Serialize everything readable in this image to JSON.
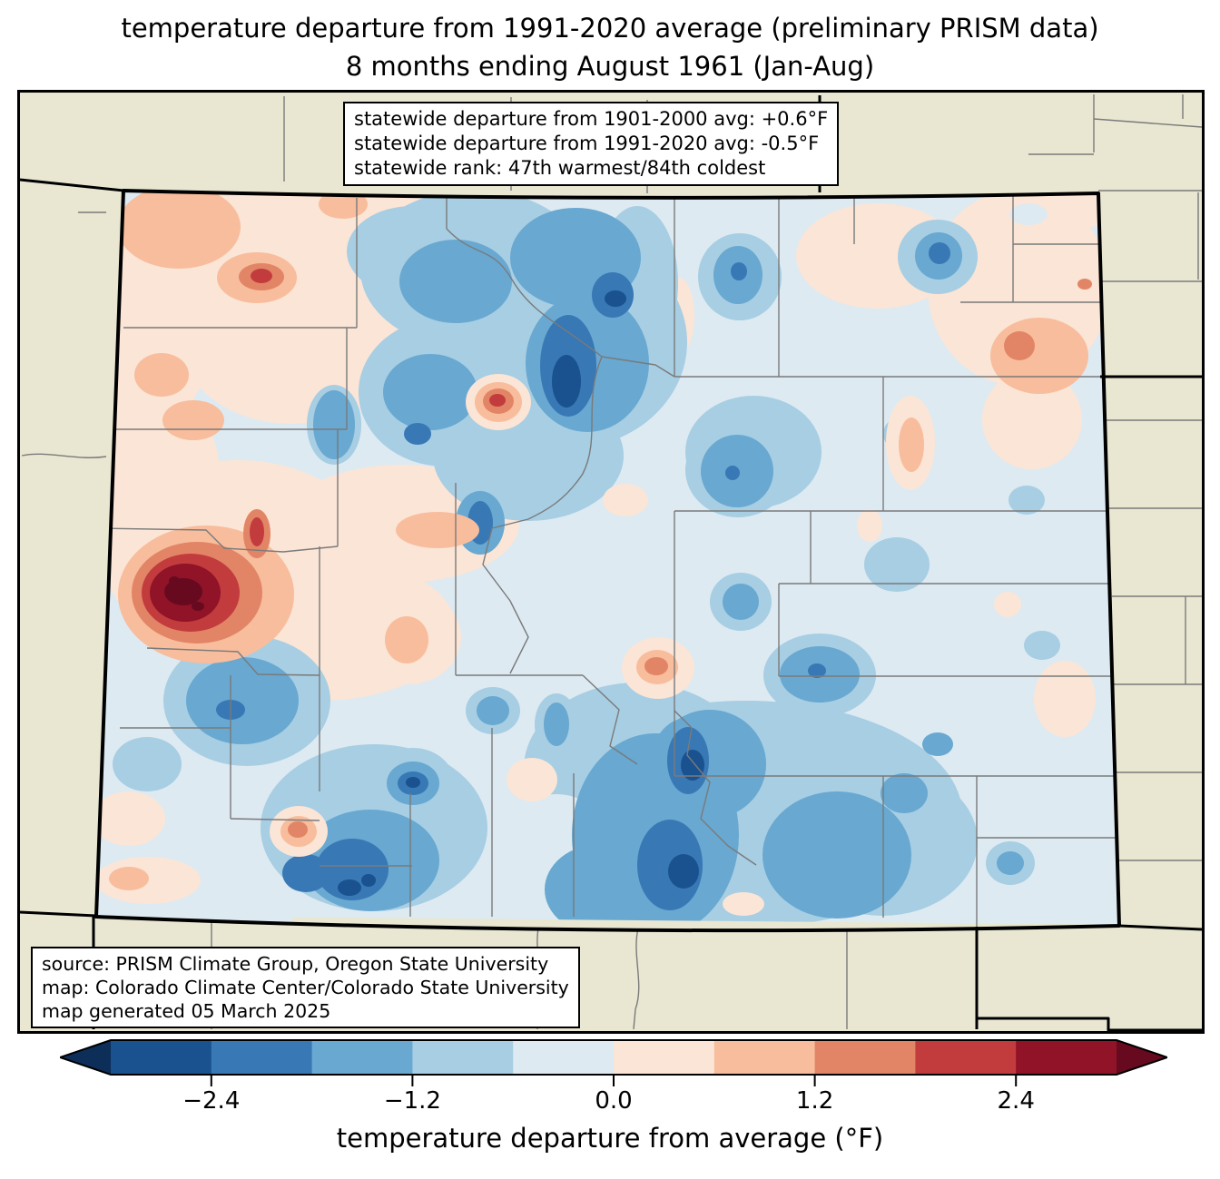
{
  "title": {
    "line1": "temperature departure from 1991-2020 average (preliminary PRISM data)",
    "line2": "8 months ending August 1961 (Jan-Aug)"
  },
  "stats_box": {
    "line1": "statewide departure from 1901-2000 avg: +0.6°F",
    "line2": "statewide departure from 1991-2020 avg: -0.5°F",
    "line3": "statewide rank: 47th warmest/84th coldest"
  },
  "source_box": {
    "line1": "source: PRISM Climate Group, Oregon State University",
    "line2": "map: Colorado Climate Center/Colorado State University",
    "line3": "map generated 05 March 2025"
  },
  "colorbar": {
    "label": "temperature departure from average (°F)",
    "range": [
      -3.0,
      3.0
    ],
    "bin_width": 0.6,
    "ticks": [
      {
        "value": -2.4,
        "label": "−2.4"
      },
      {
        "value": -1.2,
        "label": "−1.2"
      },
      {
        "value": 0.0,
        "label": "0.0"
      },
      {
        "value": 1.2,
        "label": "1.2"
      },
      {
        "value": 2.4,
        "label": "2.4"
      }
    ],
    "palette": [
      "#19528f",
      "#3878b5",
      "#68a8d1",
      "#a7cee3",
      "#ddeaf2",
      "#fbe5d6",
      "#f8bd9c",
      "#e28566",
      "#c23c3e",
      "#901328"
    ],
    "under_color": "#0c2e59",
    "over_color": "#670a20"
  },
  "map": {
    "region": "Colorado",
    "projection_shape": "trapezoid (conic projection)",
    "outside_fill": "#e9e7d2",
    "county_line_color": "#7a7a7a",
    "state_border_color": "#000000",
    "base_anomaly_bin": "-0.6 to 0.0 °F",
    "counties_outlined": true,
    "neighboring_states_shown": true,
    "anomaly_highlights": [
      {
        "area": "far northwest Colorado",
        "sign": "warm",
        "approx_peak": "+1 to +2°F"
      },
      {
        "area": "west-central valleys (Grand Junction area)",
        "sign": "warm",
        "approx_peak": "over +3°F"
      },
      {
        "area": "north-central mountains",
        "sign": "cool",
        "approx_peak": "−2.4 to −3°F"
      },
      {
        "area": "south-central mountains / Sangre de Cristo",
        "sign": "cool",
        "approx_peak": "−2.4 to −3°F"
      },
      {
        "area": "northeast corner and east border",
        "sign": "warm",
        "approx_peak": "+1.2 to +1.8°F"
      },
      {
        "area": "eastern plains",
        "sign": "cool",
        "approx_peak": "0 to −1.2°F"
      },
      {
        "area": "southwest corner",
        "sign": "mixed",
        "approx_peak": "−2.4 to +1.8°F"
      }
    ]
  }
}
